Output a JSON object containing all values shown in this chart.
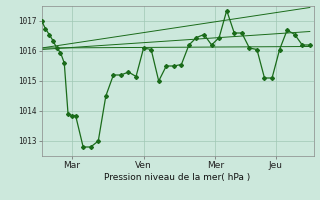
{
  "bg_color": "#cce8dc",
  "grid_color": "#a0c8b4",
  "line_color": "#1a6b1a",
  "xlabel": "Pression niveau de la mer( hPa )",
  "ylim": [
    1012.5,
    1017.5
  ],
  "yticks": [
    1013,
    1014,
    1015,
    1016,
    1017
  ],
  "xtick_labels": [
    "Mar",
    "Ven",
    "Mer",
    "Jeu"
  ],
  "xtick_positions": [
    8,
    27,
    46,
    62
  ],
  "xlim": [
    0,
    72
  ],
  "series1_x": [
    0,
    1,
    2,
    3,
    4,
    5,
    6,
    7,
    8,
    9,
    11,
    13,
    15,
    17,
    19,
    21,
    23,
    25,
    27,
    29,
    31,
    33,
    35,
    37,
    39,
    41,
    43,
    45,
    47,
    49,
    51,
    53,
    55,
    57,
    59,
    61,
    63,
    65,
    67,
    69,
    71
  ],
  "series1_y": [
    1017.0,
    1016.75,
    1016.55,
    1016.35,
    1016.1,
    1015.95,
    1015.6,
    1013.9,
    1013.85,
    1013.85,
    1012.8,
    1012.8,
    1013.0,
    1014.5,
    1015.2,
    1015.2,
    1015.3,
    1015.15,
    1016.1,
    1016.05,
    1015.0,
    1015.5,
    1015.5,
    1015.55,
    1016.2,
    1016.45,
    1016.55,
    1016.2,
    1016.45,
    1017.35,
    1016.6,
    1016.6,
    1016.1,
    1016.05,
    1015.1,
    1015.1,
    1016.05,
    1016.7,
    1016.55,
    1016.2,
    1016.2
  ],
  "trend1_x": [
    0,
    71
  ],
  "trend1_y": [
    1016.1,
    1016.15
  ],
  "trend2_x": [
    0,
    71
  ],
  "trend2_y": [
    1016.05,
    1016.65
  ],
  "trend3_x": [
    0,
    71
  ],
  "trend3_y": [
    1016.1,
    1017.45
  ]
}
